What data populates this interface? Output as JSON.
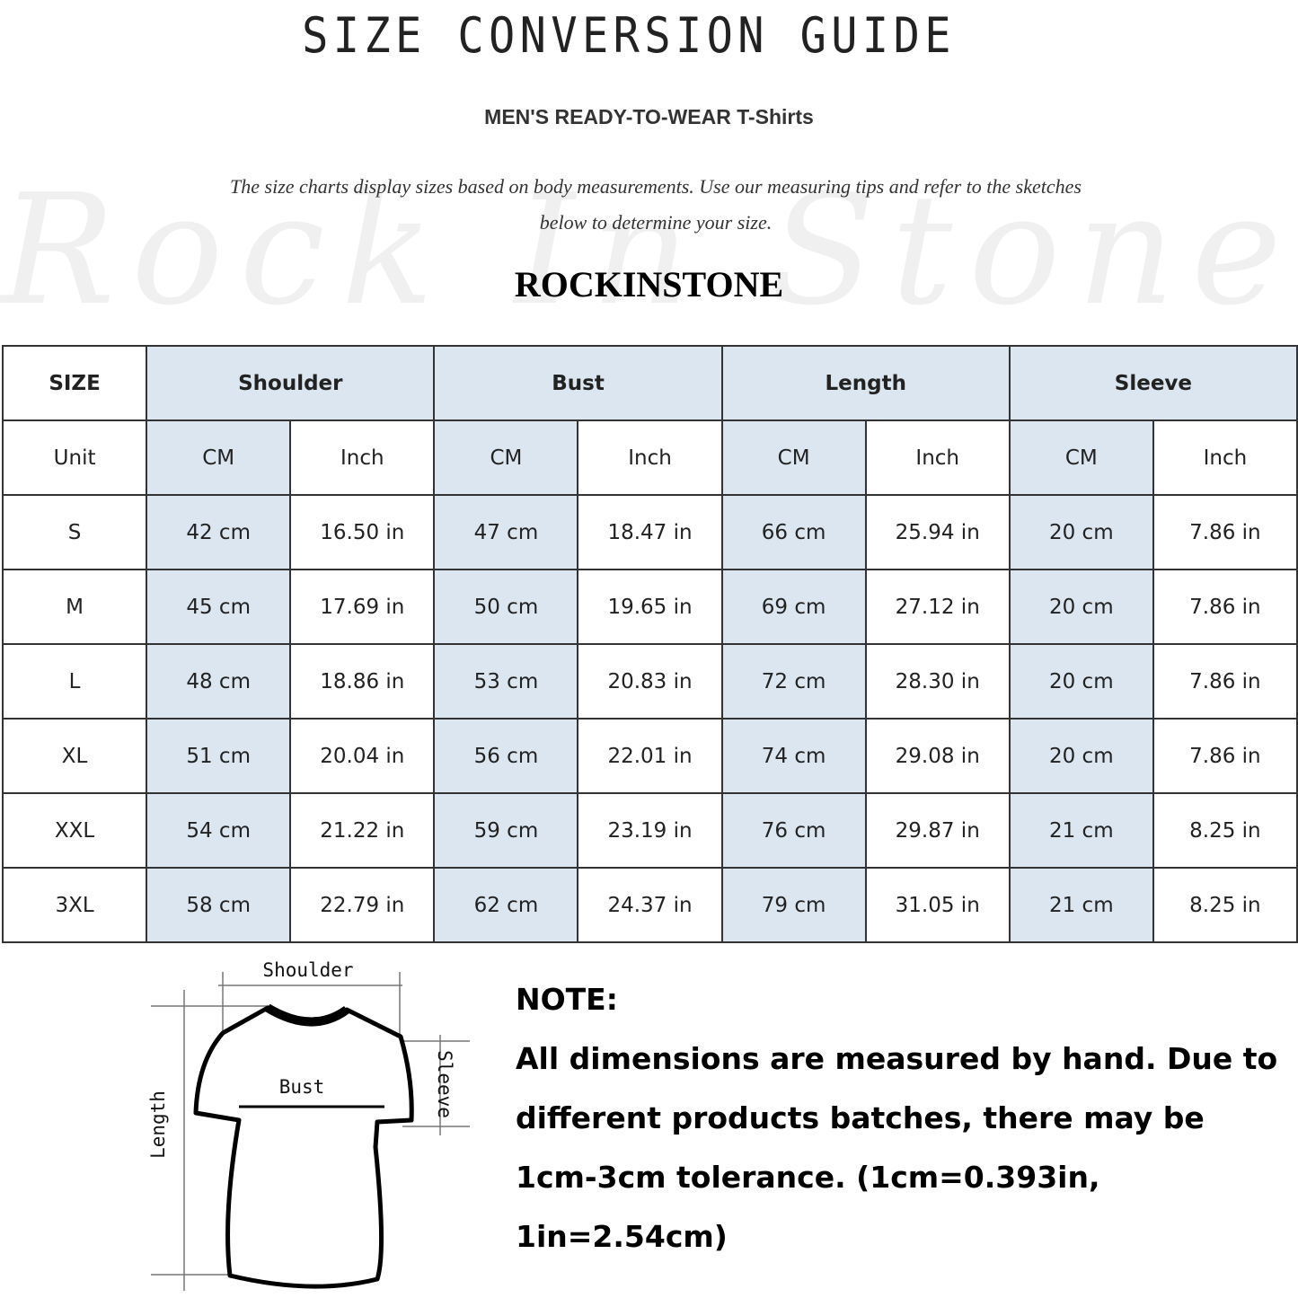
{
  "header": {
    "title": "SIZE CONVERSION GUIDE",
    "subtitle": "MEN'S READY-TO-WEAR T-Shirts",
    "description": "The size charts display sizes based on body measurements. Use our measuring tips and refer to the sketches below to determine your size.",
    "watermark": "Rock In Stone",
    "brand": "ROCKINSTONE"
  },
  "table": {
    "size_label": "SIZE",
    "groups": [
      "Shoulder",
      "Bust",
      "Length",
      "Sleeve"
    ],
    "unit_label": "Unit",
    "units": [
      "CM",
      "Inch",
      "CM",
      "Inch",
      "CM",
      "Inch",
      "CM",
      "Inch"
    ],
    "rows": [
      {
        "size": "S",
        "values": [
          "42 cm",
          "16.50 in",
          "47 cm",
          "18.47  in",
          "66 cm",
          "25.94  in",
          "20 cm",
          "7.86  in"
        ]
      },
      {
        "size": "M",
        "values": [
          "45 cm",
          "17.69  in",
          "50 cm",
          "19.65  in",
          "69 cm",
          "27.12  in",
          "20 cm",
          "7.86  in"
        ]
      },
      {
        "size": "L",
        "values": [
          "48 cm",
          "18.86  in",
          "53 cm",
          "20.83  in",
          "72 cm",
          "28.30  in",
          "20 cm",
          "7.86  in"
        ]
      },
      {
        "size": "XL",
        "values": [
          "51 cm",
          "20.04  in",
          "56 cm",
          "22.01  in",
          "74 cm",
          "29.08  in",
          "20 cm",
          "7.86  in"
        ]
      },
      {
        "size": "XXL",
        "values": [
          "54 cm",
          "21.22  in",
          "59 cm",
          "23.19  in",
          "76 cm",
          "29.87  in",
          "21 cm",
          "8.25  in"
        ]
      },
      {
        "size": "3XL",
        "values": [
          "58 cm",
          "22.79  in",
          "62 cm",
          "24.37  in",
          "79 cm",
          "31.05  in",
          "21 cm",
          "8.25  in"
        ]
      }
    ],
    "highlight_color": "#dce6f0"
  },
  "diagram": {
    "shoulder": "Shoulder",
    "bust": "Bust",
    "sleeve": "Sleeve",
    "length": "Length"
  },
  "note": {
    "heading": "NOTE:",
    "text": "All dimensions are measured by hand. Due to different products batches, there may be 1cm-3cm tolerance. (1cm=0.393in, 1in=2.54cm)"
  }
}
